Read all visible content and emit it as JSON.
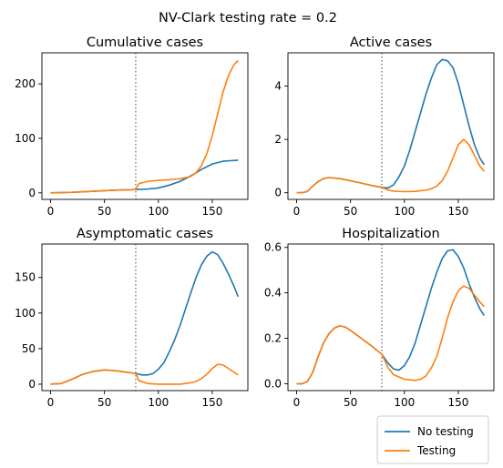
{
  "figure": {
    "suptitle": "NV-Clark testing rate = 0.2"
  },
  "legend": {
    "placement": "lower-right",
    "entries": [
      {
        "label": "No testing",
        "color": "#1f77b4"
      },
      {
        "label": "Testing",
        "color": "#ff7f0e"
      }
    ]
  },
  "chart_data": [
    {
      "type": "line",
      "title": "Cumulative cases",
      "xlabel": "",
      "ylabel": "",
      "xlim": [
        -8,
        183
      ],
      "ylim": [
        -12,
        257
      ],
      "xticks": [
        0,
        50,
        100,
        150
      ],
      "yticks": [
        0,
        100,
        200
      ],
      "vline": {
        "x": 79,
        "style": "dotted",
        "color": "#808080"
      },
      "grid": false,
      "series": [
        {
          "name": "No testing",
          "color": "#1f77b4",
          "x": [
            0,
            20,
            40,
            60,
            79,
            90,
            100,
            110,
            120,
            130,
            140,
            150,
            160,
            174
          ],
          "y": [
            0,
            1,
            3,
            5,
            6,
            7,
            9,
            14,
            21,
            31,
            43,
            53,
            58,
            60
          ]
        },
        {
          "name": "Testing",
          "color": "#ff7f0e",
          "x": [
            0,
            20,
            40,
            60,
            79,
            82,
            90,
            100,
            110,
            120,
            130,
            135,
            140,
            145,
            150,
            155,
            160,
            165,
            170,
            174
          ],
          "y": [
            0,
            1,
            3,
            5,
            6,
            17,
            21,
            23,
            24,
            26,
            30,
            37,
            50,
            72,
            105,
            145,
            185,
            215,
            235,
            243
          ]
        }
      ]
    },
    {
      "type": "line",
      "title": "Active cases",
      "xlabel": "",
      "ylabel": "",
      "xlim": [
        -8,
        183
      ],
      "ylim": [
        -0.25,
        5.25
      ],
      "xticks": [
        0,
        50,
        100,
        150
      ],
      "yticks": [
        0,
        2,
        4
      ],
      "vline": {
        "x": 79,
        "style": "dotted",
        "color": "#808080"
      },
      "grid": false,
      "series": [
        {
          "name": "No testing",
          "color": "#1f77b4",
          "x": [
            0,
            5,
            10,
            15,
            20,
            25,
            30,
            40,
            50,
            60,
            70,
            79,
            85,
            90,
            95,
            100,
            105,
            110,
            115,
            120,
            125,
            130,
            135,
            140,
            145,
            150,
            155,
            160,
            165,
            170,
            174
          ],
          "y": [
            0,
            0,
            0.05,
            0.25,
            0.42,
            0.53,
            0.57,
            0.53,
            0.45,
            0.36,
            0.27,
            0.2,
            0.18,
            0.3,
            0.6,
            1.0,
            1.6,
            2.3,
            3.0,
            3.7,
            4.3,
            4.8,
            5.0,
            4.95,
            4.7,
            4.1,
            3.3,
            2.5,
            1.8,
            1.3,
            1.05
          ]
        },
        {
          "name": "Testing",
          "color": "#ff7f0e",
          "x": [
            0,
            5,
            10,
            15,
            20,
            25,
            30,
            40,
            50,
            60,
            70,
            79,
            85,
            90,
            100,
            110,
            120,
            125,
            130,
            135,
            140,
            145,
            150,
            155,
            160,
            165,
            170,
            174
          ],
          "y": [
            0,
            0,
            0.05,
            0.25,
            0.42,
            0.53,
            0.57,
            0.53,
            0.45,
            0.36,
            0.27,
            0.2,
            0.1,
            0.06,
            0.04,
            0.05,
            0.1,
            0.15,
            0.25,
            0.45,
            0.8,
            1.3,
            1.8,
            2.0,
            1.8,
            1.4,
            1.0,
            0.8
          ]
        }
      ]
    },
    {
      "type": "line",
      "title": "Asymptomatic cases",
      "xlabel": "",
      "ylabel": "",
      "xlim": [
        -8,
        183
      ],
      "ylim": [
        -9,
        197
      ],
      "xticks": [
        0,
        50,
        100,
        150
      ],
      "yticks": [
        0,
        50,
        100,
        150
      ],
      "vline": {
        "x": 79,
        "style": "dotted",
        "color": "#808080"
      },
      "grid": false,
      "series": [
        {
          "name": "No testing",
          "color": "#1f77b4",
          "x": [
            0,
            10,
            20,
            30,
            40,
            50,
            60,
            70,
            79,
            85,
            90,
            95,
            100,
            105,
            110,
            115,
            120,
            125,
            130,
            135,
            140,
            145,
            150,
            155,
            160,
            165,
            170,
            174
          ],
          "y": [
            0,
            1,
            7,
            14,
            18,
            20,
            19,
            17,
            15,
            13,
            13,
            15,
            21,
            30,
            45,
            62,
            82,
            105,
            128,
            150,
            168,
            180,
            186,
            182,
            170,
            155,
            138,
            123
          ]
        },
        {
          "name": "Testing",
          "color": "#ff7f0e",
          "x": [
            0,
            10,
            20,
            30,
            40,
            50,
            60,
            70,
            79,
            82,
            90,
            100,
            110,
            120,
            125,
            130,
            135,
            140,
            145,
            150,
            155,
            160,
            165,
            170,
            174
          ],
          "y": [
            0,
            1,
            7,
            14,
            18,
            20,
            19,
            17,
            15,
            5,
            1,
            0,
            0,
            0,
            1,
            2,
            4,
            8,
            14,
            22,
            28,
            27,
            22,
            17,
            13
          ]
        }
      ]
    },
    {
      "type": "line",
      "title": "Hospitalization",
      "xlabel": "",
      "ylabel": "",
      "xlim": [
        -8,
        183
      ],
      "ylim": [
        -0.03,
        0.615
      ],
      "xticks": [
        0,
        50,
        100,
        150
      ],
      "yticks": [
        0.0,
        0.2,
        0.4,
        0.6
      ],
      "vline": {
        "x": 79,
        "style": "dotted",
        "color": "#808080"
      },
      "grid": false,
      "series": [
        {
          "name": "No testing",
          "color": "#1f77b4",
          "x": [
            0,
            5,
            10,
            15,
            20,
            25,
            30,
            35,
            40,
            45,
            50,
            60,
            70,
            79,
            85,
            90,
            95,
            100,
            105,
            110,
            115,
            120,
            125,
            130,
            135,
            140,
            145,
            150,
            155,
            160,
            165,
            170,
            174
          ],
          "y": [
            0,
            0,
            0.01,
            0.05,
            0.12,
            0.18,
            0.22,
            0.245,
            0.255,
            0.25,
            0.235,
            0.2,
            0.165,
            0.13,
            0.09,
            0.065,
            0.06,
            0.08,
            0.12,
            0.18,
            0.26,
            0.34,
            0.42,
            0.49,
            0.55,
            0.585,
            0.59,
            0.56,
            0.51,
            0.44,
            0.38,
            0.33,
            0.3
          ]
        },
        {
          "name": "Testing",
          "color": "#ff7f0e",
          "x": [
            0,
            5,
            10,
            15,
            20,
            25,
            30,
            35,
            40,
            45,
            50,
            60,
            70,
            79,
            85,
            90,
            100,
            110,
            115,
            120,
            125,
            130,
            135,
            140,
            145,
            150,
            155,
            160,
            165,
            170,
            174
          ],
          "y": [
            0,
            0,
            0.01,
            0.05,
            0.12,
            0.18,
            0.22,
            0.245,
            0.255,
            0.25,
            0.235,
            0.2,
            0.165,
            0.13,
            0.07,
            0.04,
            0.02,
            0.015,
            0.02,
            0.035,
            0.07,
            0.12,
            0.2,
            0.29,
            0.36,
            0.41,
            0.43,
            0.42,
            0.39,
            0.36,
            0.34
          ]
        }
      ]
    }
  ]
}
